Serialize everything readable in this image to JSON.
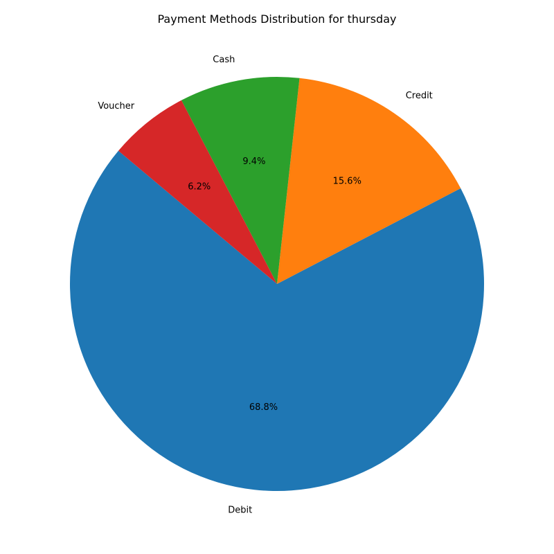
{
  "chart_data": {
    "type": "pie",
    "title": "Payment Methods Distribution for thursday",
    "start_angle_deg": 140,
    "direction": "counterclockwise",
    "slices": [
      {
        "label": "Debit",
        "value": 68.75,
        "pct_label": "68.8%",
        "color": "#1f77b4"
      },
      {
        "label": "Credit",
        "value": 15.625,
        "pct_label": "15.6%",
        "color": "#ff7f0e"
      },
      {
        "label": "Cash",
        "value": 9.375,
        "pct_label": "9.4%",
        "color": "#2ca02c"
      },
      {
        "label": "Voucher",
        "value": 6.25,
        "pct_label": "6.2%",
        "color": "#d62728"
      }
    ]
  }
}
